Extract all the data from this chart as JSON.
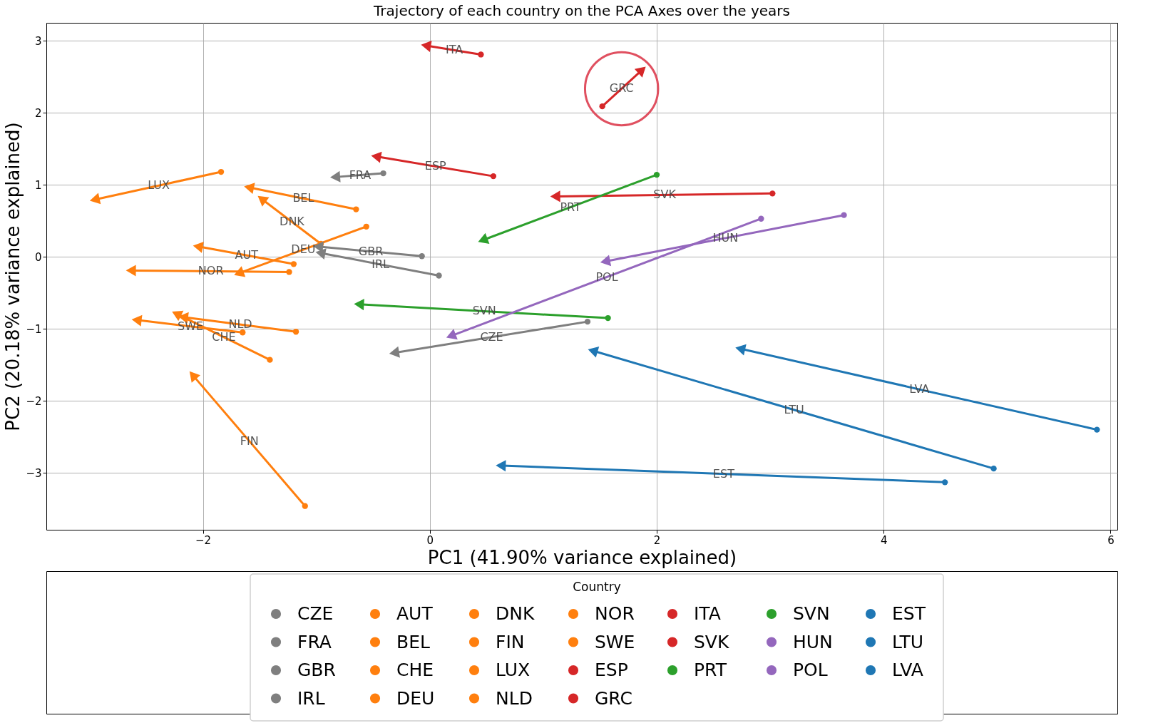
{
  "chart_data": {
    "type": "line",
    "title": "Trajectory of each country on the PCA Axes over the years",
    "xlabel": "PC1 (41.90% variance explained)",
    "ylabel": "PC2 (20.18% variance explained)",
    "legend_title": "Country",
    "legend": "bottom",
    "grid": true,
    "marker": "circle",
    "xlim": [
      -3.38,
      6.06
    ],
    "ylim": [
      -3.79,
      3.25
    ],
    "xticks": [
      {
        "value": -2,
        "label": "−2"
      },
      0,
      2,
      4,
      6
    ],
    "yticks": [
      {
        "value": -3,
        "label": "−3"
      },
      {
        "value": -2,
        "label": "−2"
      },
      {
        "value": -1,
        "label": "−1"
      },
      0,
      1,
      2,
      3
    ],
    "series": [
      {
        "name": "CZE",
        "color": "#7f7f7f",
        "x": [
          1.39,
          -0.3
        ],
        "values": [
          -0.9,
          -1.33
        ]
      },
      {
        "name": "FRA",
        "color": "#7f7f7f",
        "x": [
          -0.41,
          -0.82
        ],
        "values": [
          1.16,
          1.11
        ]
      },
      {
        "name": "GBR",
        "color": "#7f7f7f",
        "x": [
          -0.07,
          -0.97
        ],
        "values": [
          0.01,
          0.14
        ]
      },
      {
        "name": "IRL",
        "color": "#7f7f7f",
        "x": [
          0.08,
          -0.95
        ],
        "values": [
          -0.26,
          0.05
        ]
      },
      {
        "name": "AUT",
        "color": "#ff7f0e",
        "x": [
          -1.2,
          -2.03
        ],
        "values": [
          -0.1,
          0.14
        ]
      },
      {
        "name": "BEL",
        "color": "#ff7f0e",
        "x": [
          -0.65,
          -1.58
        ],
        "values": [
          0.66,
          0.96
        ]
      },
      {
        "name": "CHE",
        "color": "#ff7f0e",
        "x": [
          -1.41,
          -2.22
        ],
        "values": [
          -1.43,
          -0.8
        ]
      },
      {
        "name": "DEU",
        "color": "#ff7f0e",
        "x": [
          -0.56,
          -1.67
        ],
        "values": [
          0.42,
          -0.22
        ]
      },
      {
        "name": "DNK",
        "color": "#ff7f0e",
        "x": [
          -0.96,
          -1.47
        ],
        "values": [
          0.18,
          0.79
        ]
      },
      {
        "name": "FIN",
        "color": "#ff7f0e",
        "x": [
          -1.1,
          -2.08
        ],
        "values": [
          -3.46,
          -1.66
        ]
      },
      {
        "name": "LUX",
        "color": "#ff7f0e",
        "x": [
          -1.84,
          -2.94
        ],
        "values": [
          1.18,
          0.8
        ]
      },
      {
        "name": "NLD",
        "color": "#ff7f0e",
        "x": [
          -1.18,
          -2.16
        ],
        "values": [
          -1.04,
          -0.84
        ]
      },
      {
        "name": "NOR",
        "color": "#ff7f0e",
        "x": [
          -1.24,
          -2.62
        ],
        "values": [
          -0.21,
          -0.19
        ]
      },
      {
        "name": "SWE",
        "color": "#ff7f0e",
        "x": [
          -1.65,
          -2.57
        ],
        "values": [
          -1.05,
          -0.88
        ]
      },
      {
        "name": "ESP",
        "color": "#d62728",
        "x": [
          0.56,
          -0.46
        ],
        "values": [
          1.12,
          1.39
        ]
      },
      {
        "name": "GRC",
        "color": "#d62728",
        "x": [
          1.52,
          1.86
        ],
        "values": [
          2.09,
          2.58
        ]
      },
      {
        "name": "ITA",
        "color": "#d62728",
        "x": [
          0.45,
          -0.02
        ],
        "values": [
          2.81,
          2.93
        ]
      },
      {
        "name": "SVK",
        "color": "#d62728",
        "x": [
          3.02,
          1.12
        ],
        "values": [
          0.88,
          0.84
        ]
      },
      {
        "name": "PRT",
        "color": "#2ca02c",
        "x": [
          2.0,
          0.48
        ],
        "values": [
          1.14,
          0.24
        ]
      },
      {
        "name": "SVN",
        "color": "#2ca02c",
        "x": [
          1.57,
          -0.61
        ],
        "values": [
          -0.85,
          -0.66
        ]
      },
      {
        "name": "HUN",
        "color": "#9467bd",
        "x": [
          3.65,
          1.56
        ],
        "values": [
          0.58,
          -0.06
        ]
      },
      {
        "name": "POL",
        "color": "#9467bd",
        "x": [
          2.92,
          0.2
        ],
        "values": [
          0.53,
          -1.09
        ]
      },
      {
        "name": "EST",
        "color": "#1f77b4",
        "x": [
          4.54,
          0.64
        ],
        "values": [
          -3.13,
          -2.9
        ]
      },
      {
        "name": "LTU",
        "color": "#1f77b4",
        "x": [
          4.97,
          1.45
        ],
        "values": [
          -2.94,
          -1.31
        ]
      },
      {
        "name": "LVA",
        "color": "#1f77b4",
        "x": [
          5.88,
          2.75
        ],
        "values": [
          -2.4,
          -1.28
        ]
      }
    ]
  }
}
